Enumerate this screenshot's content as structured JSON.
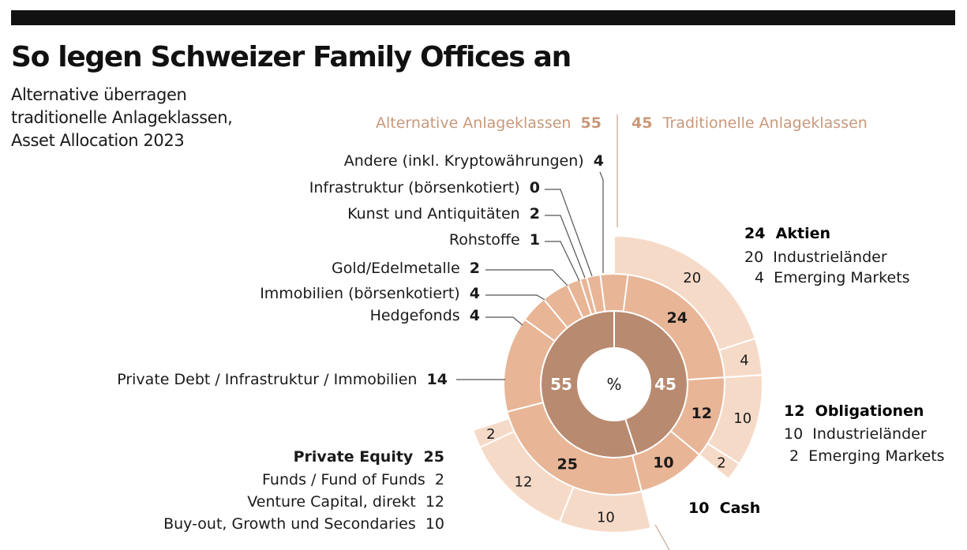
{
  "header": {
    "title": "So legen Schweizer Family Offices an",
    "subtitle_lines": [
      "Alternative überragen",
      "traditionelle Anlageklassen,",
      "Asset Allocation 2023"
    ]
  },
  "colors": {
    "inner_ring": "#b88a70",
    "middle_ring": "#e8b596",
    "outer_ring": "#f6dac8",
    "highlight_text": "#c9987a",
    "leader_line": "#555555",
    "divider_line": "#c9a58e"
  },
  "chart_data": {
    "type": "sunburst",
    "unit": "%",
    "center_label": "%",
    "groups": [
      {
        "label": "Alternative Anlageklassen",
        "value": 55
      },
      {
        "label": "Traditionelle Anlageklassen",
        "value": 45
      }
    ],
    "categories": [
      {
        "label": "Aktien",
        "value": 24,
        "group": "Traditionelle Anlageklassen",
        "breakdown": [
          {
            "label": "Industrieländer",
            "value": 20
          },
          {
            "label": "Emerging Markets",
            "value": 4
          }
        ]
      },
      {
        "label": "Obligationen",
        "value": 12,
        "group": "Traditionelle Anlageklassen",
        "breakdown": [
          {
            "label": "Industrieländer",
            "value": 10
          },
          {
            "label": "Emerging Markets",
            "value": 2
          }
        ]
      },
      {
        "label": "Cash",
        "value": 10,
        "group": "Traditionelle Anlageklassen",
        "breakdown": []
      },
      {
        "label": "Private Equity",
        "value": 25,
        "group": "Alternative Anlageklassen",
        "breakdown": [
          {
            "label": "Buy-out, Growth und Secondaries",
            "value": 10
          },
          {
            "label": "Venture Capital, direkt",
            "value": 12
          },
          {
            "label": "Funds / Fund of Funds",
            "value": 2
          }
        ]
      },
      {
        "label": "Private Debt / Infrastruktur / Immobilien",
        "value": 14,
        "group": "Alternative Anlageklassen",
        "breakdown": []
      },
      {
        "label": "Hedgefonds",
        "value": 4,
        "group": "Alternative Anlageklassen",
        "breakdown": []
      },
      {
        "label": "Immobilien (börsenkotiert)",
        "value": 4,
        "group": "Alternative Anlageklassen",
        "breakdown": []
      },
      {
        "label": "Gold/Edelmetalle",
        "value": 2,
        "group": "Alternative Anlageklassen",
        "breakdown": []
      },
      {
        "label": "Rohstoffe",
        "value": 1,
        "group": "Alternative Anlageklassen",
        "breakdown": []
      },
      {
        "label": "Kunst und Antiquitäten",
        "value": 2,
        "group": "Alternative Anlageklassen",
        "breakdown": []
      },
      {
        "label": "Infrastruktur (börsenkotiert)",
        "value": 0,
        "group": "Alternative Anlageklassen",
        "breakdown": []
      },
      {
        "label": "Andere (inkl. Kryptowährungen)",
        "value": 4,
        "group": "Alternative Anlageklassen",
        "breakdown": []
      }
    ]
  }
}
